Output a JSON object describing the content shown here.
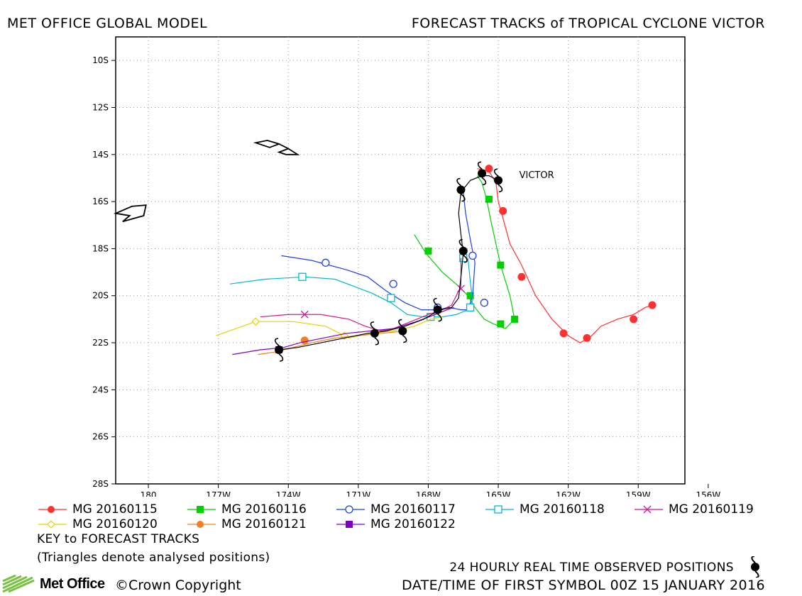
{
  "header": {
    "left": "MET OFFICE GLOBAL MODEL",
    "right": "FORECAST TRACKS of TROPICAL CYCLONE VICTOR"
  },
  "chart_data": {
    "type": "map-tracks",
    "xlim": [
      178.6,
      203
    ],
    "ylim": [
      -28,
      -9
    ],
    "grid": true,
    "x_ticks": [
      {
        "value": 180,
        "label": "180"
      },
      {
        "value": 183,
        "label": "177W"
      },
      {
        "value": 186,
        "label": "174W"
      },
      {
        "value": 189,
        "label": "171W"
      },
      {
        "value": 192,
        "label": "168W"
      },
      {
        "value": 195,
        "label": "165W"
      },
      {
        "value": 198,
        "label": "162W"
      },
      {
        "value": 201,
        "label": "159W"
      },
      {
        "value": 204,
        "label": "156W"
      }
    ],
    "y_ticks": [
      {
        "value": -10,
        "label": "10S"
      },
      {
        "value": -12,
        "label": "12S"
      },
      {
        "value": -14,
        "label": "14S"
      },
      {
        "value": -16,
        "label": "16S"
      },
      {
        "value": -18,
        "label": "18S"
      },
      {
        "value": -20,
        "label": "20S"
      },
      {
        "value": -22,
        "label": "22S"
      },
      {
        "value": -24,
        "label": "24S"
      },
      {
        "value": -26,
        "label": "26S"
      },
      {
        "value": -28,
        "label": "28S"
      }
    ],
    "storm_label": {
      "text": "VICTOR",
      "x": 195.9,
      "y": -14.7
    },
    "series": [
      {
        "name": "MG 20160115",
        "color": "#ff3030",
        "marker": "circle-filled",
        "path": [
          [
            194.1,
            -14.6
          ],
          [
            194.6,
            -14.7
          ],
          [
            194.9,
            -15.2
          ],
          [
            195.0,
            -16.0
          ],
          [
            195.2,
            -16.7
          ],
          [
            195.5,
            -17.8
          ],
          [
            196.0,
            -18.7
          ],
          [
            196.6,
            -20.0
          ],
          [
            197.3,
            -21.0
          ],
          [
            198.0,
            -21.7
          ],
          [
            198.5,
            -22.0
          ],
          [
            198.9,
            -21.8
          ],
          [
            199.4,
            -21.3
          ],
          [
            200.1,
            -21.0
          ],
          [
            200.8,
            -20.8
          ],
          [
            201.3,
            -20.5
          ],
          [
            201.6,
            -20.4
          ]
        ],
        "markers": [
          [
            194.6,
            -14.6
          ],
          [
            195.2,
            -16.4
          ],
          [
            196.0,
            -19.2
          ],
          [
            197.8,
            -21.6
          ],
          [
            198.8,
            -21.8
          ],
          [
            200.8,
            -21.0
          ],
          [
            201.6,
            -20.4
          ]
        ]
      },
      {
        "name": "MG 20160116",
        "color": "#00d000",
        "marker": "square-filled",
        "path": [
          [
            191.4,
            -17.4
          ],
          [
            191.9,
            -18.2
          ],
          [
            192.6,
            -19.0
          ],
          [
            193.3,
            -19.6
          ],
          [
            193.7,
            -20.0
          ],
          [
            194.0,
            -20.5
          ],
          [
            194.4,
            -21.0
          ],
          [
            194.8,
            -21.2
          ],
          [
            195.3,
            -21.4
          ],
          [
            195.7,
            -21.0
          ],
          [
            195.5,
            -20.0
          ],
          [
            195.1,
            -18.7
          ],
          [
            194.9,
            -17.8
          ],
          [
            194.7,
            -16.9
          ],
          [
            194.5,
            -15.9
          ],
          [
            194.3,
            -15.2
          ],
          [
            194.1,
            -14.9
          ]
        ],
        "markers": [
          [
            192.0,
            -18.1
          ],
          [
            193.8,
            -20.0
          ],
          [
            195.1,
            -21.2
          ],
          [
            195.7,
            -21.0
          ],
          [
            195.1,
            -18.7
          ],
          [
            194.6,
            -15.9
          ]
        ]
      },
      {
        "name": "MG 20160117",
        "color": "#2040e0",
        "marker": "circle-open",
        "path": [
          [
            185.7,
            -18.3
          ],
          [
            187.0,
            -18.5
          ],
          [
            188.5,
            -18.9
          ],
          [
            189.4,
            -19.2
          ],
          [
            190.2,
            -19.8
          ],
          [
            191.0,
            -20.3
          ],
          [
            191.7,
            -20.6
          ],
          [
            192.4,
            -20.6
          ],
          [
            192.9,
            -20.5
          ],
          [
            193.4,
            -20.6
          ],
          [
            193.7,
            -20.6
          ],
          [
            193.9,
            -20.0
          ],
          [
            194.0,
            -18.6
          ],
          [
            193.8,
            -17.6
          ],
          [
            193.6,
            -16.5
          ],
          [
            193.5,
            -15.6
          ]
        ],
        "markers": [
          [
            187.6,
            -18.6
          ],
          [
            190.5,
            -19.5
          ],
          [
            192.4,
            -20.5
          ],
          [
            194.4,
            -20.3
          ],
          [
            193.9,
            -18.3
          ]
        ]
      },
      {
        "name": "MG 20160118",
        "color": "#00b8d0",
        "marker": "square-open",
        "path": [
          [
            183.5,
            -19.5
          ],
          [
            185.0,
            -19.3
          ],
          [
            186.7,
            -19.2
          ],
          [
            188.0,
            -19.3
          ],
          [
            188.8,
            -19.6
          ],
          [
            189.6,
            -19.9
          ],
          [
            190.4,
            -20.3
          ],
          [
            191.1,
            -20.8
          ],
          [
            191.8,
            -20.9
          ],
          [
            192.6,
            -20.9
          ],
          [
            193.2,
            -20.8
          ],
          [
            193.7,
            -20.6
          ],
          [
            193.9,
            -20.2
          ],
          [
            193.8,
            -19.4
          ],
          [
            193.7,
            -18.4
          ]
        ],
        "markers": [
          [
            186.6,
            -19.2
          ],
          [
            190.4,
            -20.1
          ],
          [
            192.1,
            -20.9
          ],
          [
            193.8,
            -20.5
          ],
          [
            193.5,
            -18.4
          ]
        ]
      },
      {
        "name": "MG 20160119",
        "color": "#d01890",
        "marker": "x",
        "path": [
          [
            184.8,
            -20.9
          ],
          [
            186.0,
            -20.8
          ],
          [
            187.4,
            -20.8
          ],
          [
            188.6,
            -21.0
          ],
          [
            189.3,
            -21.3
          ],
          [
            190.0,
            -21.5
          ],
          [
            190.5,
            -21.4
          ],
          [
            191.0,
            -21.2
          ],
          [
            191.5,
            -21.0
          ],
          [
            192.0,
            -20.8
          ],
          [
            192.6,
            -20.6
          ],
          [
            193.0,
            -20.4
          ],
          [
            193.4,
            -19.6
          ],
          [
            193.4,
            -18.4
          ]
        ],
        "markers": [
          [
            186.7,
            -20.8
          ],
          [
            193.4,
            -19.7
          ]
        ]
      },
      {
        "name": "MG 20160120",
        "color": "#e8d000",
        "marker": "diamond-open",
        "path": [
          [
            182.9,
            -21.7
          ],
          [
            184.6,
            -21.1
          ],
          [
            186.2,
            -21.1
          ],
          [
            187.6,
            -21.3
          ],
          [
            188.6,
            -21.8
          ],
          [
            189.5,
            -21.6
          ],
          [
            190.5,
            -21.5
          ],
          [
            191.4,
            -21.3
          ],
          [
            192.1,
            -21.0
          ],
          [
            192.6,
            -20.9
          ]
        ],
        "markers": [
          [
            184.6,
            -21.1
          ],
          [
            188.4,
            -21.7
          ]
        ]
      },
      {
        "name": "MG 20160121",
        "color": "#f08020",
        "marker": "circle-filled",
        "path": [
          [
            184.7,
            -22.5
          ],
          [
            185.4,
            -22.4
          ],
          [
            186.2,
            -22.2
          ],
          [
            187.0,
            -22.0
          ],
          [
            188.0,
            -21.8
          ],
          [
            189.0,
            -21.7
          ],
          [
            190.0,
            -21.6
          ],
          [
            191.0,
            -21.5
          ]
        ],
        "markers": [
          [
            186.7,
            -21.9
          ]
        ]
      },
      {
        "name": "MG 20160122",
        "color": "#8000c0",
        "marker": "square-filled",
        "path": [
          [
            183.6,
            -22.5
          ],
          [
            184.8,
            -22.3
          ],
          [
            185.8,
            -22.2
          ],
          [
            186.5,
            -22.0
          ],
          [
            187.5,
            -21.8
          ],
          [
            188.5,
            -21.6
          ],
          [
            189.5,
            -21.5
          ],
          [
            190.5,
            -21.4
          ],
          [
            191.5,
            -21.1
          ],
          [
            192.3,
            -20.8
          ],
          [
            192.8,
            -20.6
          ],
          [
            193.1,
            -20.5
          ]
        ],
        "markers": [
          [
            185.6,
            -22.3
          ]
        ]
      }
    ],
    "observed": {
      "name": "24 HOURLY REAL TIME OBSERVED POSITIONS",
      "path": [
        [
          195.0,
          -15.1
        ],
        [
          194.6,
          -14.9
        ],
        [
          194.3,
          -14.9
        ],
        [
          193.8,
          -15.1
        ],
        [
          193.4,
          -15.6
        ],
        [
          193.3,
          -16.5
        ],
        [
          193.4,
          -17.4
        ],
        [
          193.5,
          -18.2
        ],
        [
          193.4,
          -19.2
        ],
        [
          193.3,
          -20.1
        ],
        [
          193.0,
          -20.5
        ],
        [
          192.5,
          -20.6
        ],
        [
          191.8,
          -21.0
        ],
        [
          191.0,
          -21.3
        ],
        [
          190.2,
          -21.5
        ],
        [
          189.4,
          -21.6
        ],
        [
          188.4,
          -21.8
        ],
        [
          187.4,
          -22.0
        ],
        [
          186.4,
          -22.2
        ],
        [
          185.6,
          -22.3
        ]
      ],
      "positions": [
        [
          195.0,
          -15.1
        ],
        [
          194.3,
          -14.8
        ],
        [
          193.4,
          -15.5
        ],
        [
          193.5,
          -18.1
        ],
        [
          192.4,
          -20.6
        ],
        [
          190.9,
          -21.5
        ],
        [
          189.7,
          -21.6
        ],
        [
          185.6,
          -22.3
        ]
      ]
    },
    "islands": [
      [
        [
          184.6,
          -13.5
        ],
        [
          185.1,
          -13.4
        ],
        [
          185.6,
          -13.55
        ],
        [
          186.0,
          -13.75
        ],
        [
          185.6,
          -13.9
        ],
        [
          185.9,
          -14.0
        ],
        [
          186.4,
          -14.0
        ],
        [
          186.0,
          -13.75
        ],
        [
          185.6,
          -13.55
        ],
        [
          185.2,
          -13.7
        ],
        [
          184.6,
          -13.5
        ]
      ],
      [
        [
          178.6,
          -16.5
        ],
        [
          179.3,
          -16.2
        ],
        [
          179.9,
          -16.15
        ],
        [
          179.8,
          -16.6
        ],
        [
          178.9,
          -16.85
        ],
        [
          179.2,
          -16.6
        ],
        [
          178.6,
          -16.5
        ]
      ]
    ]
  },
  "legend": {
    "items": [
      {
        "label": "MG 20160115",
        "color": "#ff3030",
        "marker": "circle-filled"
      },
      {
        "label": "MG 20160116",
        "color": "#00d000",
        "marker": "square-filled"
      },
      {
        "label": "MG 20160117",
        "color": "#2040e0",
        "marker": "circle-open"
      },
      {
        "label": "MG 20160118",
        "color": "#00b8d0",
        "marker": "square-open"
      },
      {
        "label": "MG 20160119",
        "color": "#d01890",
        "marker": "x"
      },
      {
        "label": "MG 20160120",
        "color": "#e8d000",
        "marker": "diamond-open"
      },
      {
        "label": "MG 20160121",
        "color": "#f08020",
        "marker": "circle-filled"
      },
      {
        "label": "MG 20160122",
        "color": "#8000c0",
        "marker": "square-filled"
      }
    ]
  },
  "notes": {
    "key": "KEY to FORECAST TRACKS",
    "triangles": "(Triangles denote analysed positions)",
    "observed": "24 HOURLY REAL TIME OBSERVED POSITIONS",
    "first_symbol": "DATE/TIME OF FIRST SYMBOL 00Z 15 JANUARY 2016"
  },
  "footer": {
    "logo_text": "Met Office",
    "copyright": "©Crown Copyright"
  }
}
